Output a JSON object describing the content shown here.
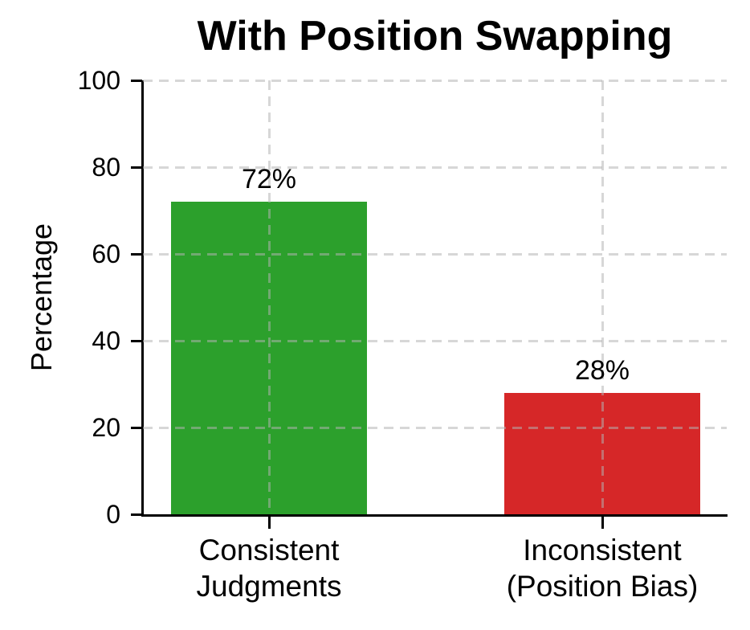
{
  "chart_data": {
    "type": "bar",
    "title": "With Position Swapping",
    "ylabel": "Percentage",
    "xlabel": "",
    "categories": [
      "Consistent\nJudgments",
      "Inconsistent\n(Position Bias)"
    ],
    "values": [
      72,
      28
    ],
    "bar_labels": [
      "72%",
      "28%"
    ],
    "bar_colors": [
      "#2ca02c",
      "#d62728"
    ],
    "yticks": [
      0,
      20,
      40,
      60,
      80,
      100
    ],
    "ylim": [
      0,
      100
    ],
    "grid_style": "dashed",
    "grid_color": "#d9d9d9",
    "axis_color": "#000000",
    "background_color": "#ffffff",
    "legend": "none"
  }
}
